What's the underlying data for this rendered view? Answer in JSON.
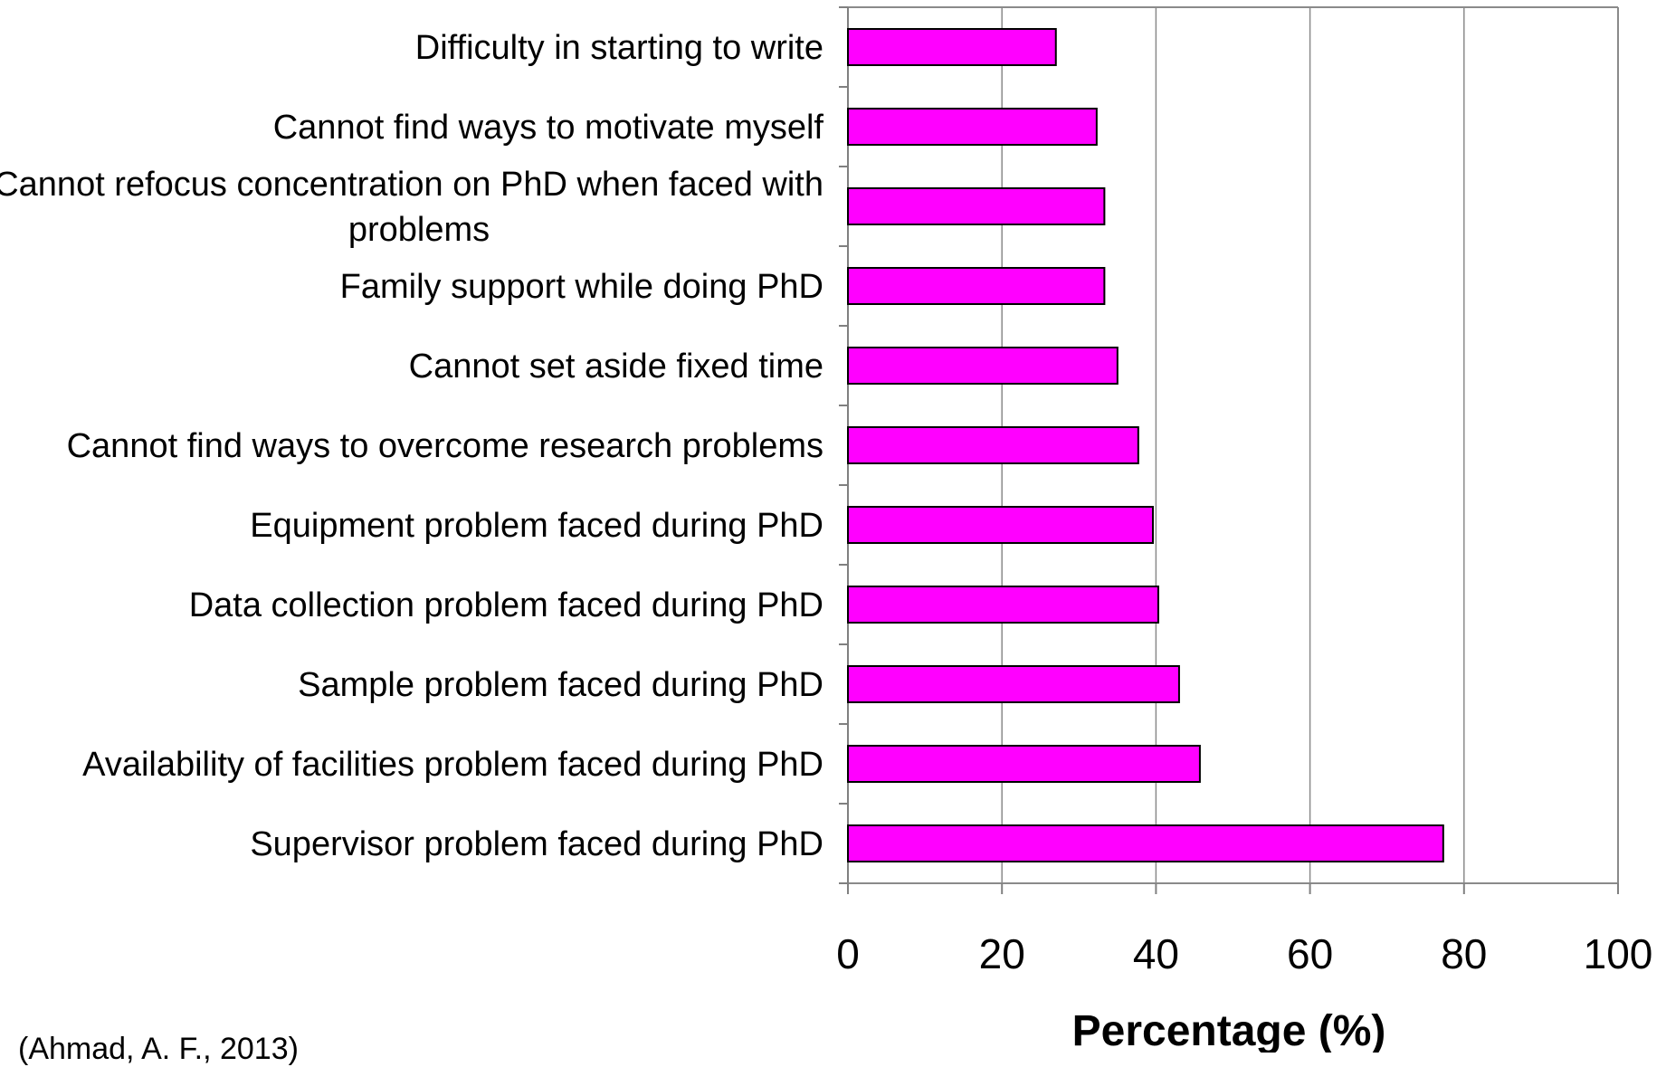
{
  "chart_data": {
    "type": "bar",
    "orientation": "horizontal",
    "title": "",
    "xlabel": "Percentage (%)",
    "ylabel": "",
    "xlim": [
      0,
      100
    ],
    "xticks": [
      0,
      20,
      40,
      60,
      80,
      100
    ],
    "grid": "vertical major gridlines",
    "legend": "none",
    "bar_color": "#FF00FF",
    "bar_edge_color": "#000000",
    "categories": [
      "Difficulty in starting to write",
      "Cannot find ways to motivate myself",
      "Cannot refocus concentration on PhD when faced with problems",
      "Family support while doing PhD",
      "Cannot set aside fixed time",
      "Cannot find ways to overcome research problems",
      "Equipment problem faced during PhD",
      "Data collection problem faced during PhD",
      "Sample problem faced during PhD",
      "Availability of facilities problem faced during PhD",
      "Supervisor problem faced during PhD"
    ],
    "category_label_lines": [
      [
        "Difficulty in starting to write"
      ],
      [
        "Cannot find ways to motivate myself"
      ],
      [
        "Cannot refocus concentration on PhD when faced with",
        "problems"
      ],
      [
        "Family support while doing PhD"
      ],
      [
        "Cannot set aside fixed time"
      ],
      [
        "Cannot find ways to overcome research problems"
      ],
      [
        "Equipment problem faced during PhD"
      ],
      [
        "Data collection problem faced during PhD"
      ],
      [
        "Sample problem faced during PhD"
      ],
      [
        "Availability of facilities problem faced during PhD"
      ],
      [
        "Supervisor problem faced during PhD"
      ]
    ],
    "values": [
      27,
      32.3,
      33.3,
      33.3,
      35,
      37.7,
      39.6,
      40.3,
      43,
      45.7,
      77.3
    ]
  },
  "source_note": "(Ahmad, A. F., 2013)"
}
